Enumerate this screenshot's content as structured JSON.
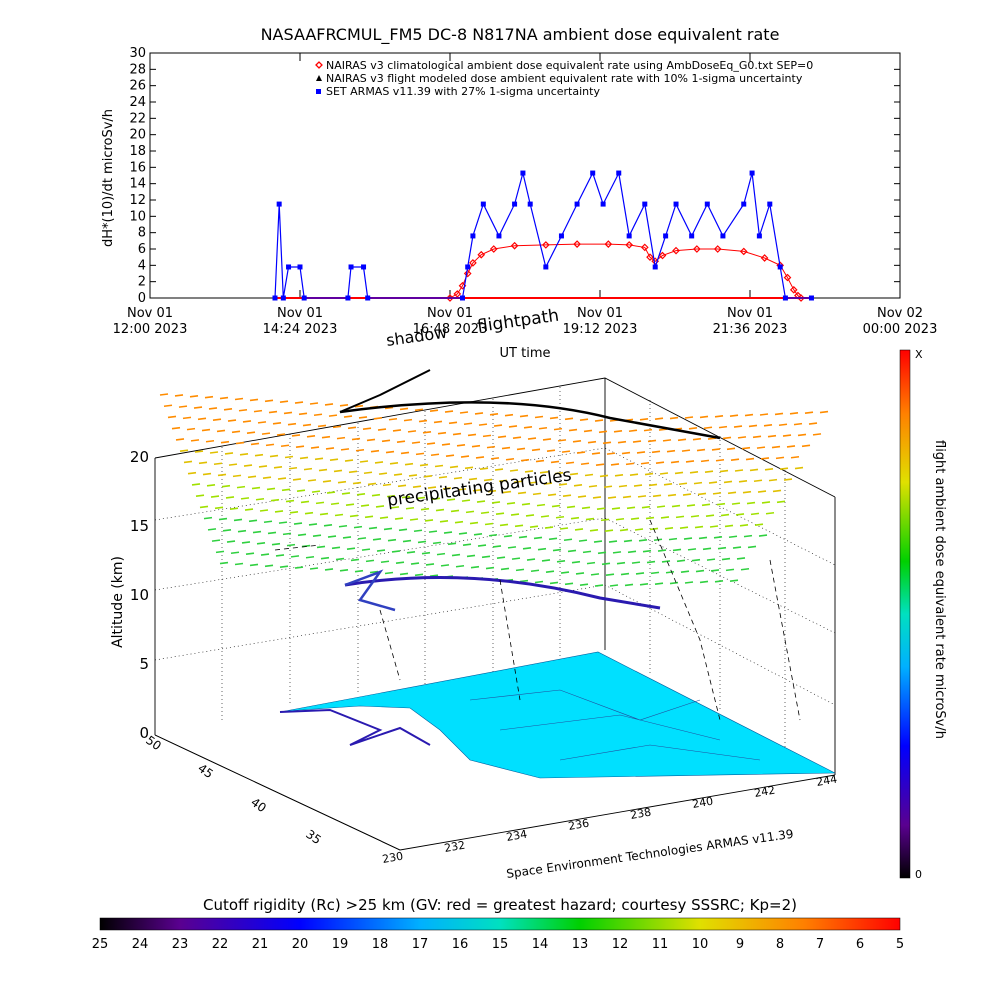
{
  "page": {
    "background": "#ffffff"
  },
  "chart_data": [
    {
      "type": "scatter",
      "title": "NASAAFRCMUL_FM5 DC-8   N817NA ambient dose equivalent rate",
      "xlabel": "UT time",
      "ylabel": "dH*(10)/dt microSv/h",
      "ylim": [
        0,
        30
      ],
      "yticks": [
        0,
        2,
        4,
        6,
        8,
        10,
        12,
        14,
        16,
        18,
        20,
        22,
        24,
        26,
        28,
        30
      ],
      "xlim": [
        "2023-11-01 12:00",
        "2023-11-02 00:00"
      ],
      "xticks": [
        {
          "value": "2023-11-01 12:00",
          "line1": "Nov 01",
          "line2": "12:00 2023"
        },
        {
          "value": "2023-11-01 14:24",
          "line1": "Nov 01",
          "line2": "14:24 2023"
        },
        {
          "value": "2023-11-01 16:48",
          "line1": "Nov 01",
          "line2": "16:48 2023"
        },
        {
          "value": "2023-11-01 19:12",
          "line1": "Nov 01",
          "line2": "19:12 2023"
        },
        {
          "value": "2023-11-01 21:36",
          "line1": "Nov 01",
          "line2": "21:36 2023"
        },
        {
          "value": "2023-11-02 00:00",
          "line1": "Nov 02",
          "line2": "00:00 2023"
        }
      ],
      "legend_position": "top-right",
      "series": [
        {
          "name": "NAIRAS v3 climatological ambient dose equivalent rate using AmbDoseEq_G0.txt SEP=0",
          "color": "#ff0000",
          "marker": "diamond",
          "points": [
            [
              "2023-11-01 16:48",
              0.0
            ],
            [
              "2023-11-01 16:55",
              0.5
            ],
            [
              "2023-11-01 17:00",
              1.5
            ],
            [
              "2023-11-01 17:05",
              3.0
            ],
            [
              "2023-11-01 17:10",
              4.3
            ],
            [
              "2023-11-01 17:18",
              5.3
            ],
            [
              "2023-11-01 17:30",
              6.0
            ],
            [
              "2023-11-01 17:50",
              6.4
            ],
            [
              "2023-11-01 18:20",
              6.5
            ],
            [
              "2023-11-01 18:50",
              6.6
            ],
            [
              "2023-11-01 19:20",
              6.6
            ],
            [
              "2023-11-01 19:40",
              6.5
            ],
            [
              "2023-11-01 19:55",
              6.2
            ],
            [
              "2023-11-01 20:00",
              5.0
            ],
            [
              "2023-11-01 20:05",
              4.5
            ],
            [
              "2023-11-01 20:12",
              5.2
            ],
            [
              "2023-11-01 20:25",
              5.8
            ],
            [
              "2023-11-01 20:45",
              6.0
            ],
            [
              "2023-11-01 21:05",
              6.0
            ],
            [
              "2023-11-01 21:30",
              5.7
            ],
            [
              "2023-11-01 21:50",
              4.9
            ],
            [
              "2023-11-01 22:05",
              4.0
            ],
            [
              "2023-11-01 22:12",
              2.5
            ],
            [
              "2023-11-01 22:18",
              1.0
            ],
            [
              "2023-11-01 22:22",
              0.3
            ],
            [
              "2023-11-01 22:25",
              0.0
            ]
          ]
        },
        {
          "name": "NAIRAS v3 flight modeled dose ambient equivalent rate with 10% 1-sigma uncertainty",
          "color": "#000000",
          "marker": "triangle",
          "points": []
        },
        {
          "name": "SET ARMAS v11.39 with 27% 1-sigma uncertainty",
          "color": "#0000ff",
          "marker": "square",
          "points": [
            [
              "2023-11-01 14:00",
              0.0
            ],
            [
              "2023-11-01 14:04",
              11.5
            ],
            [
              "2023-11-01 14:08",
              0.0
            ],
            [
              "2023-11-01 14:13",
              3.8
            ],
            [
              "2023-11-01 14:24",
              3.8
            ],
            [
              "2023-11-01 14:28",
              0.0
            ],
            [
              "2023-11-01 15:10",
              0.0
            ],
            [
              "2023-11-01 15:13",
              3.8
            ],
            [
              "2023-11-01 15:25",
              3.8
            ],
            [
              "2023-11-01 15:29",
              0.0
            ],
            [
              "2023-11-01 17:00",
              0.0
            ],
            [
              "2023-11-01 17:05",
              3.8
            ],
            [
              "2023-11-01 17:10",
              7.6
            ],
            [
              "2023-11-01 17:20",
              11.5
            ],
            [
              "2023-11-01 17:35",
              7.6
            ],
            [
              "2023-11-01 17:50",
              11.5
            ],
            [
              "2023-11-01 17:58",
              15.3
            ],
            [
              "2023-11-01 18:05",
              11.5
            ],
            [
              "2023-11-01 18:20",
              3.8
            ],
            [
              "2023-11-01 18:35",
              7.6
            ],
            [
              "2023-11-01 18:50",
              11.5
            ],
            [
              "2023-11-01 19:05",
              15.3
            ],
            [
              "2023-11-01 19:15",
              11.5
            ],
            [
              "2023-11-01 19:30",
              15.3
            ],
            [
              "2023-11-01 19:40",
              7.6
            ],
            [
              "2023-11-01 19:55",
              11.5
            ],
            [
              "2023-11-01 20:05",
              3.8
            ],
            [
              "2023-11-01 20:15",
              7.6
            ],
            [
              "2023-11-01 20:25",
              11.5
            ],
            [
              "2023-11-01 20:40",
              7.6
            ],
            [
              "2023-11-01 20:55",
              11.5
            ],
            [
              "2023-11-01 21:10",
              7.6
            ],
            [
              "2023-11-01 21:30",
              11.5
            ],
            [
              "2023-11-01 21:38",
              15.3
            ],
            [
              "2023-11-01 21:45",
              7.6
            ],
            [
              "2023-11-01 21:55",
              11.5
            ],
            [
              "2023-11-01 22:05",
              3.8
            ],
            [
              "2023-11-01 22:10",
              0.0
            ],
            [
              "2023-11-01 22:35",
              0.0
            ]
          ]
        }
      ]
    },
    {
      "type": "3d-trajectory",
      "annotations": [
        "shadow",
        "flightpath",
        "precipitating particles"
      ],
      "credit": "Space Environment Technologies ARMAS v11.39",
      "zlabel": "Altitude (km)",
      "zticks": [
        0,
        5,
        10,
        15,
        20
      ],
      "lat_ticks": [
        35,
        40,
        45,
        50
      ],
      "lon_ticks": [
        230,
        232,
        234,
        236,
        238,
        240,
        242,
        244
      ],
      "colorbar": {
        "label": "flight ambient dose equivalent rate microSv/h",
        "top_label": "X",
        "bottom_label": "0"
      },
      "colors": {
        "terrain": "#00e0ff",
        "track": "#2a1ab0"
      }
    },
    {
      "type": "colorbar",
      "title": "Cutoff rigidity (Rc) >25 km (GV: red = greatest hazard; courtesy SSSRC; Kp=2)",
      "ticks": [
        25,
        24,
        23,
        22,
        21,
        20,
        19,
        18,
        17,
        16,
        15,
        14,
        13,
        12,
        11,
        10,
        9,
        8,
        7,
        6,
        5
      ]
    }
  ]
}
